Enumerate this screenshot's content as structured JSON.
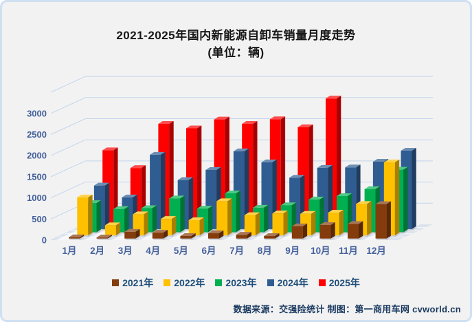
{
  "title": {
    "line1": "2021-2025年国内新能源自卸车销量月度走势",
    "line2": "(单位：辆)"
  },
  "source_note": "数据来源：交强险统计 制图：第一商用车网 cvworld.cn",
  "chart_data": {
    "type": "bar",
    "style": "3d-clustered-column",
    "title": "2021-2025年国内新能源自卸车销量月度走势 (单位：辆)",
    "categories": [
      "1月",
      "2月",
      "3月",
      "4月",
      "5月",
      "6月",
      "7月",
      "8月",
      "9月",
      "10月",
      "11月",
      "12月"
    ],
    "series": [
      {
        "name": "2021年",
        "color": "#843C0C",
        "values": [
          30,
          25,
          160,
          140,
          60,
          125,
          90,
          60,
          290,
          320,
          345,
          815
        ]
      },
      {
        "name": "2022年",
        "color": "#FFC000",
        "values": [
          900,
          240,
          500,
          390,
          360,
          810,
          480,
          520,
          510,
          540,
          745,
          1730
        ]
      },
      {
        "name": "2023年",
        "color": "#00B050",
        "values": [
          690,
          550,
          570,
          800,
          560,
          920,
          580,
          640,
          775,
          855,
          1020,
          1480
        ]
      },
      {
        "name": "2024年",
        "color": "#2F5D91",
        "values": [
          1030,
          750,
          1760,
          1160,
          1400,
          1840,
          1580,
          1215,
          1450,
          1460,
          1595,
          1855
        ]
      },
      {
        "name": "2025年",
        "color": "#FE0000",
        "values": [
          1790,
          1370,
          2415,
          2310,
          2520,
          2415,
          2525,
          2335,
          3015,
          null,
          null,
          null
        ]
      }
    ],
    "ylim": [
      0,
      3500
    ],
    "ytick_interval": 500,
    "yticks_labeled": [
      0,
      500,
      1000,
      1500,
      2000,
      2500,
      3000
    ],
    "grid": true,
    "legend_position": "bottom"
  },
  "colors": {
    "background": "#F2F2F2",
    "frame_border": "#CFE0F2",
    "gridline": "#C3D5EC",
    "floor": "#DDE3ED",
    "floor_tile": "#FFFFFF",
    "axis_text": "#44609B",
    "legend_text": "#1F4E79",
    "title_text": "#171717",
    "source_text": "#17375E"
  }
}
